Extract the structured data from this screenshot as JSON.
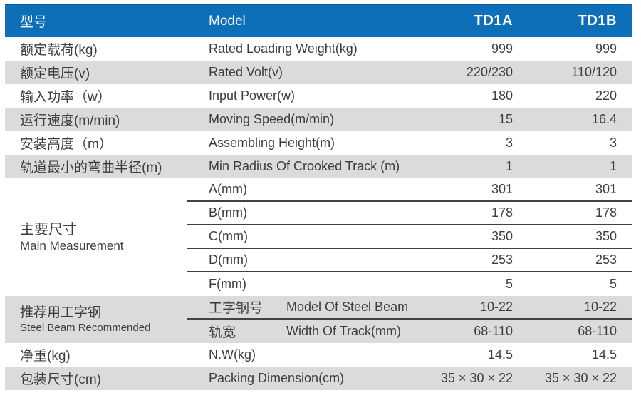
{
  "header": {
    "col_zh": "型号",
    "col_en": "Model",
    "model_a": "TD1A",
    "model_b": "TD1B"
  },
  "rows": [
    {
      "zh": "额定载荷(kg)",
      "en": "Rated Loading Weight(kg)",
      "a": "999",
      "b": "999"
    },
    {
      "zh": "额定电压(v)",
      "en": "Rated Volt(v)",
      "a": "220/230",
      "b": "110/120"
    },
    {
      "zh": "输入功率（w）",
      "en": "Input Power(w)",
      "a": "180",
      "b": "220"
    },
    {
      "zh": "运行速度(m/min)",
      "en": "Moving Speed(m/min)",
      "a": "15",
      "b": "16.4"
    },
    {
      "zh": "安装高度（m）",
      "en": "Assembling Height(m)",
      "a": "3",
      "b": "3"
    },
    {
      "zh": "轨道最小的弯曲半径(m)",
      "en": "Min Radius Of Crooked Track (m)",
      "a": "1",
      "b": "1"
    }
  ],
  "measurement": {
    "label_zh": "主要尺寸",
    "label_en": "Main Measurement",
    "rows": [
      {
        "label": "A(mm)",
        "a": "301",
        "b": "301"
      },
      {
        "label": "B(mm)",
        "a": "178",
        "b": "178"
      },
      {
        "label": "C(mm)",
        "a": "350",
        "b": "350"
      },
      {
        "label": "D(mm)",
        "a": "253",
        "b": "253"
      },
      {
        "label": "F(mm)",
        "a": "5",
        "b": "5"
      }
    ]
  },
  "steel_beam": {
    "label_zh": "推荐用工字钢",
    "label_en": "Steel Beam Recommended",
    "rows": [
      {
        "zh": "工字钢号",
        "en": "Model Of Steel Beam",
        "a": "10-22",
        "b": "10-22"
      },
      {
        "zh": "轨宽",
        "en": "Width Of Track(mm)",
        "a": "68-110",
        "b": "68-110"
      }
    ]
  },
  "footer_rows": [
    {
      "zh": "净重(kg)",
      "en": "N.W(kg)",
      "a": "14.5",
      "b": "14.5"
    },
    {
      "zh": "包装尺寸(cm)",
      "en": "Packing Dimension(cm)",
      "a": "35 × 30 × 22",
      "b": "35 × 30 × 22"
    }
  ],
  "colors": {
    "header_bg": "#0d6fb8",
    "header_border": "#0b5b94",
    "row_alt_bg": "#dbdbdb",
    "text": "#3d3d3d",
    "separator_line": "#424242"
  }
}
